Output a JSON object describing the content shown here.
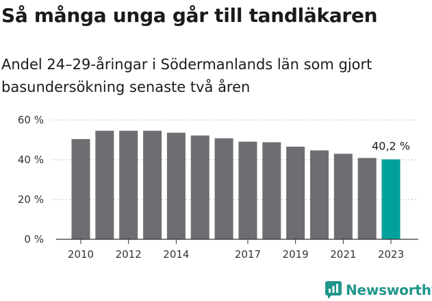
{
  "chart_data": {
    "type": "bar",
    "title": "Så många unga går till tandläkaren",
    "subtitle": "Andel 24–29-åringar i Södermanlands län som gjort basundersökning senaste två åren",
    "categories": [
      "2010",
      "2011",
      "2012",
      "2013",
      "2014",
      "2015",
      "2016",
      "2017",
      "2018",
      "2019",
      "2020",
      "2021",
      "2022",
      "2023"
    ],
    "values": [
      50.4,
      54.6,
      54.6,
      54.6,
      53.6,
      52.2,
      50.8,
      49.1,
      48.8,
      46.6,
      44.7,
      43.0,
      40.9,
      40.2
    ],
    "x_tick_labels": [
      "2010",
      "",
      "2012",
      "",
      "2014",
      "",
      "",
      "2017",
      "",
      "2019",
      "",
      "2021",
      "",
      "2023"
    ],
    "y_ticks": [
      0,
      20,
      40,
      60
    ],
    "y_tick_labels": [
      "0 %",
      "20 %",
      "40 %",
      "60 %"
    ],
    "ylim": [
      0,
      60
    ],
    "highlight_index": 13,
    "highlight_label": "40,2 %",
    "grid": true,
    "xlabel": "",
    "ylabel": "",
    "colors": {
      "bar": "#6e6d71",
      "highlight": "#00a19a",
      "grid": "#bdbdbd",
      "axis": "#333333"
    }
  },
  "branding": {
    "name": "Newsworthy",
    "color": "#21968a"
  }
}
